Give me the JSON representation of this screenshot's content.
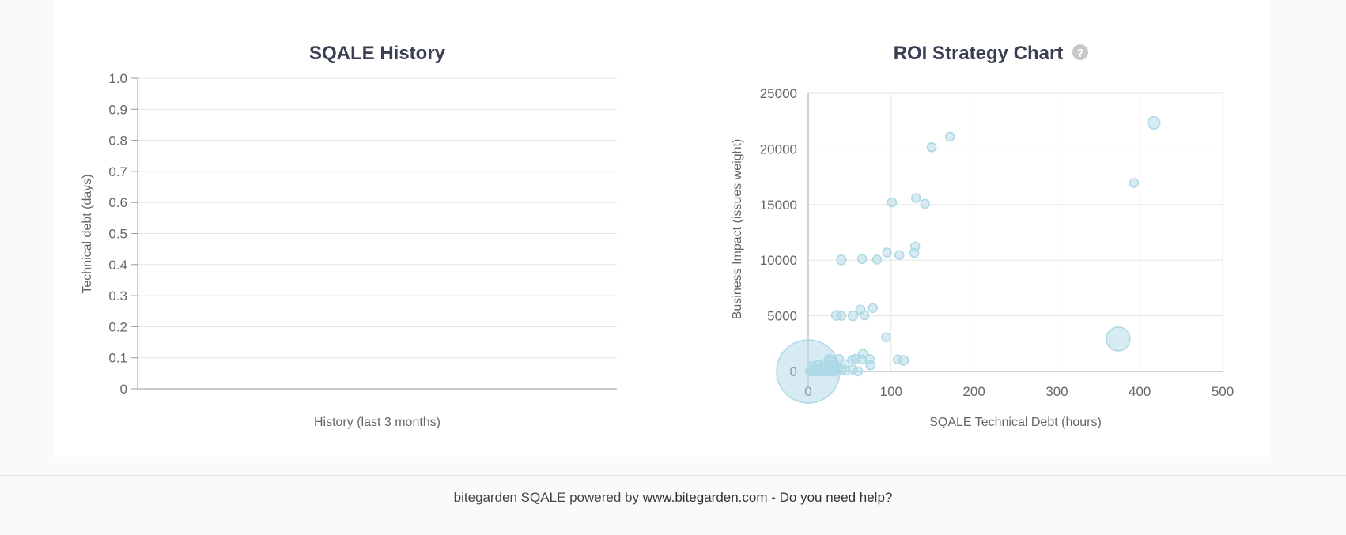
{
  "chart_data": [
    {
      "type": "line",
      "title": "SQALE History",
      "xlabel": "History (last 3 months)",
      "ylabel": "Technical debt (days)",
      "ylim": [
        0,
        1.0
      ],
      "yticks": [
        "0",
        "0.1",
        "0.2",
        "0.3",
        "0.4",
        "0.5",
        "0.6",
        "0.7",
        "0.8",
        "0.9",
        "1.0"
      ],
      "series": []
    },
    {
      "type": "scatter",
      "title": "ROI Strategy Chart",
      "help_icon": "question-circle-icon",
      "xlabel": "SQALE Technical Debt (hours)",
      "ylabel": "Business Impact (issues weight)",
      "xlim": [
        0,
        500
      ],
      "ylim": [
        0,
        25000
      ],
      "xticks": [
        "0",
        "100",
        "200",
        "300",
        "400",
        "500"
      ],
      "yticks": [
        "0",
        "5000",
        "10000",
        "15000",
        "20000",
        "25000"
      ],
      "color": "#add8e6",
      "points": [
        [
          417,
          22340,
          2
        ],
        [
          171,
          21100,
          1
        ],
        [
          149,
          20150,
          1
        ],
        [
          393,
          16940,
          1
        ],
        [
          130,
          15590,
          1
        ],
        [
          101,
          15190,
          1
        ],
        [
          141,
          15070,
          1
        ],
        [
          129,
          11220,
          1
        ],
        [
          95,
          10690,
          1
        ],
        [
          128,
          10650,
          1
        ],
        [
          110,
          10460,
          1
        ],
        [
          40,
          10030,
          1.2
        ],
        [
          65,
          10100,
          1
        ],
        [
          83,
          10050,
          1
        ],
        [
          34,
          5040,
          1.2
        ],
        [
          40,
          5000,
          1
        ],
        [
          54,
          5000,
          1.2
        ],
        [
          63,
          5560,
          1
        ],
        [
          68,
          5040,
          1
        ],
        [
          78,
          5700,
          1
        ],
        [
          94,
          3070,
          1
        ],
        [
          374,
          2920,
          6
        ],
        [
          66,
          1590,
          1
        ],
        [
          108,
          1070,
          1
        ],
        [
          115,
          1000,
          1.2
        ],
        [
          53,
          1050,
          1
        ],
        [
          57,
          1140,
          1
        ],
        [
          74,
          1120,
          1
        ],
        [
          65,
          1070,
          1
        ],
        [
          75,
          550,
          1
        ],
        [
          37,
          1120,
          1
        ],
        [
          25,
          1120,
          1
        ],
        [
          28,
          1050,
          1
        ],
        [
          44,
          670,
          1
        ],
        [
          41,
          170,
          1
        ],
        [
          45,
          70,
          1
        ],
        [
          54,
          170,
          1
        ],
        [
          60,
          0,
          1
        ],
        [
          5,
          500,
          1
        ],
        [
          8,
          300,
          1
        ],
        [
          12,
          600,
          1
        ],
        [
          15,
          200,
          1
        ],
        [
          18,
          400,
          1
        ],
        [
          20,
          700,
          1
        ],
        [
          22,
          100,
          1
        ],
        [
          25,
          500,
          1
        ],
        [
          28,
          300,
          1
        ],
        [
          30,
          650,
          1
        ],
        [
          32,
          0,
          1
        ],
        [
          35,
          200,
          1
        ],
        [
          2,
          0,
          1
        ],
        [
          4,
          100,
          1
        ],
        [
          6,
          0,
          1
        ],
        [
          10,
          0,
          1
        ],
        [
          14,
          50,
          1
        ],
        [
          17,
          0,
          1
        ],
        [
          24,
          0,
          1
        ],
        [
          26,
          100,
          1
        ],
        [
          29,
          0,
          1
        ],
        [
          31,
          400,
          1
        ],
        [
          0,
          0,
          40
        ]
      ]
    }
  ],
  "footer": {
    "text": "bitegarden SQALE powered by ",
    "link1": "www.bitegarden.com",
    "separator": " - ",
    "link2": "Do you need help?"
  }
}
